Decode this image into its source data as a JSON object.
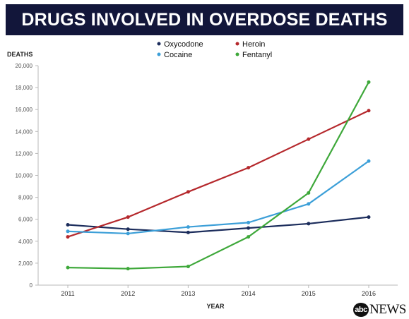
{
  "chart_data": {
    "type": "line",
    "title": "DRUGS INVOLVED IN OVERDOSE DEATHS",
    "xlabel": "YEAR",
    "ylabel": "DEATHS",
    "categories": [
      "2011",
      "2012",
      "2013",
      "2014",
      "2015",
      "2016"
    ],
    "ylim": [
      0,
      20000
    ],
    "yticks": [
      "0",
      "2,000",
      "4,000",
      "6,000",
      "8,000",
      "10,000",
      "12,000",
      "14,000",
      "16,000",
      "18,000",
      "20,000"
    ],
    "grid": false,
    "legend_position": "top",
    "series": [
      {
        "name": "Oxycodone",
        "color": "#1c2d5c",
        "values": [
          5500,
          5100,
          4800,
          5200,
          5600,
          6200
        ]
      },
      {
        "name": "Heroin",
        "color": "#b5282c",
        "values": [
          4400,
          6200,
          8500,
          10700,
          13300,
          15900
        ]
      },
      {
        "name": "Cocaine",
        "color": "#3c9fd8",
        "values": [
          4900,
          4700,
          5300,
          5700,
          7400,
          11300
        ]
      },
      {
        "name": "Fentanyl",
        "color": "#3ea83a",
        "values": [
          1600,
          1500,
          1700,
          4400,
          8400,
          18500
        ]
      }
    ]
  },
  "logo": {
    "badge": "abc",
    "text": "NEWS"
  }
}
